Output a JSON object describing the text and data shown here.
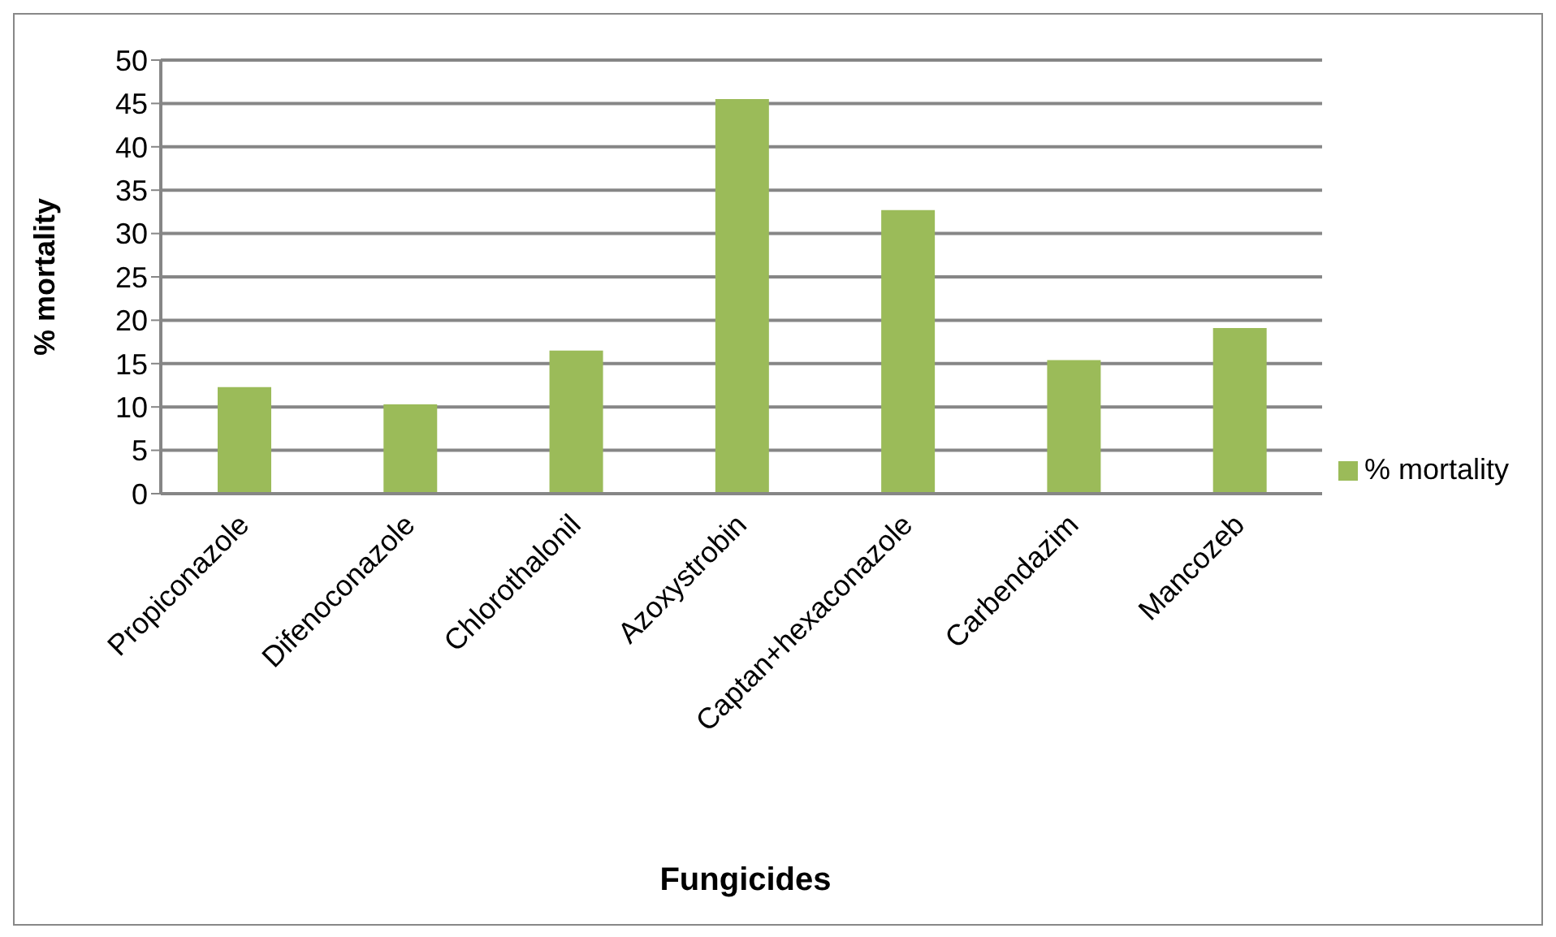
{
  "chart_data": {
    "type": "bar",
    "xlabel": "Fungicides",
    "ylabel": "% mortality",
    "categories": [
      "Propiconazole",
      "Difenoconazole",
      "Chlorothalonil",
      "Azoxystrobin",
      "Captan+hexaconazole",
      "Carbendazim",
      "Mancozeb"
    ],
    "series": [
      {
        "name": "% mortality",
        "color": "#9bbb59",
        "values": [
          12.3,
          10.3,
          16.5,
          45.5,
          32.7,
          15.4,
          19.1
        ]
      }
    ],
    "ylim": [
      0,
      50
    ],
    "yticks": [
      0,
      5,
      10,
      15,
      20,
      25,
      30,
      35,
      40,
      45,
      50
    ],
    "grid": "y",
    "legend": "right"
  }
}
